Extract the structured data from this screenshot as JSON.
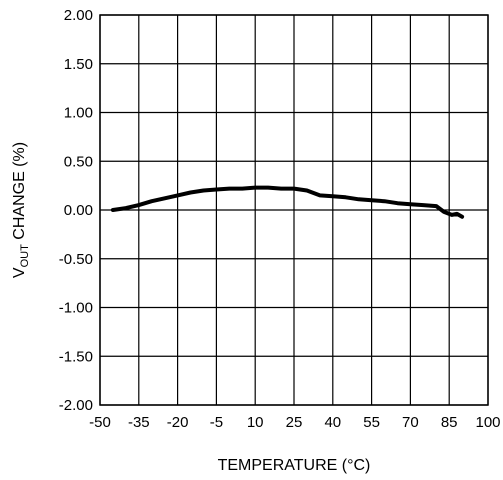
{
  "chart_data": {
    "type": "line",
    "xlabel": "TEMPERATURE (°C)",
    "ylabel_main": "V",
    "ylabel_sub": "OUT",
    "ylabel_rest": " CHANGE (%)",
    "xlim": [
      -50,
      100
    ],
    "ylim": [
      -2.0,
      2.0
    ],
    "x_ticks": [
      -50,
      -35,
      -20,
      -5,
      10,
      25,
      40,
      55,
      70,
      85,
      100
    ],
    "x_tick_labels": [
      "-50",
      "-35",
      "-20",
      "-5",
      "10",
      "25",
      "40",
      "55",
      "70",
      "85",
      "100"
    ],
    "y_ticks": [
      2.0,
      1.5,
      1.0,
      0.5,
      0.0,
      -0.5,
      -1.0,
      -1.5,
      -2.0
    ],
    "y_tick_labels": [
      "2.00",
      "1.50",
      "1.00",
      "0.50",
      "0.00",
      "-0.50",
      "-1.00",
      "-1.50",
      "-2.00"
    ],
    "grid": true,
    "series": [
      {
        "x": [
          -45,
          -40,
          -35,
          -30,
          -25,
          -20,
          -15,
          -10,
          -5,
          0,
          5,
          10,
          15,
          20,
          25,
          30,
          35,
          40,
          45,
          50,
          55,
          60,
          65,
          70,
          75,
          80,
          83,
          86,
          88,
          90
        ],
        "y": [
          0.0,
          0.02,
          0.05,
          0.09,
          0.12,
          0.15,
          0.18,
          0.2,
          0.21,
          0.22,
          0.22,
          0.23,
          0.23,
          0.22,
          0.22,
          0.2,
          0.15,
          0.14,
          0.13,
          0.11,
          0.1,
          0.09,
          0.07,
          0.06,
          0.05,
          0.04,
          -0.02,
          -0.05,
          -0.04,
          -0.07
        ]
      }
    ]
  }
}
